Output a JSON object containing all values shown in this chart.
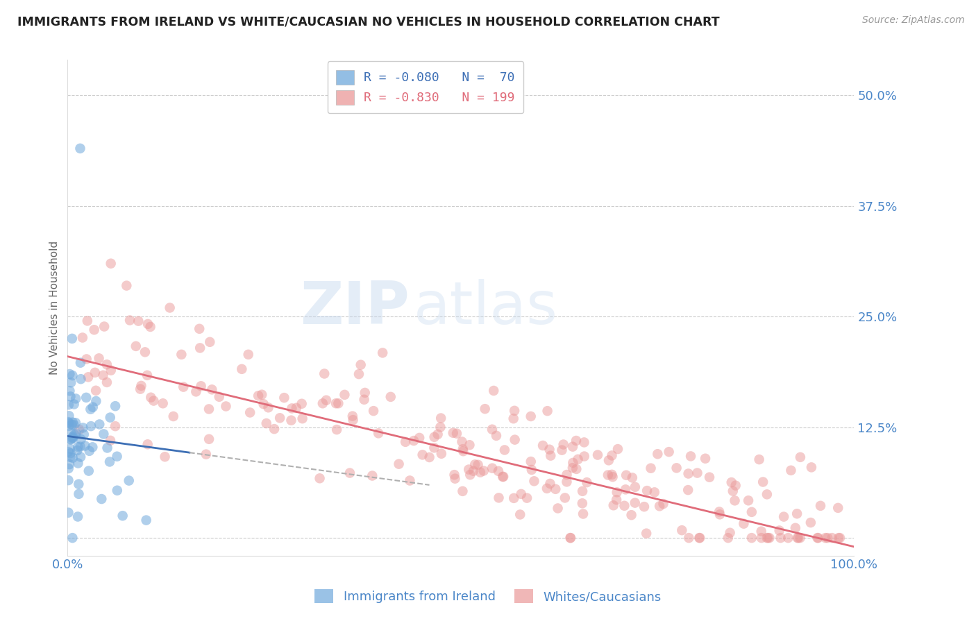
{
  "title": "IMMIGRANTS FROM IRELAND VS WHITE/CAUCASIAN NO VEHICLES IN HOUSEHOLD CORRELATION CHART",
  "source": "Source: ZipAtlas.com",
  "ylabel": "No Vehicles in Household",
  "xlim": [
    0.0,
    1.0
  ],
  "ylim": [
    -0.02,
    0.54
  ],
  "yticks": [
    0.0,
    0.125,
    0.25,
    0.375,
    0.5
  ],
  "ytick_labels": [
    "",
    "12.5%",
    "25.0%",
    "37.5%",
    "50.0%"
  ],
  "xticks": [
    0.0,
    1.0
  ],
  "xtick_labels": [
    "0.0%",
    "100.0%"
  ],
  "legend_labels": [
    "Immigrants from Ireland",
    "Whites/Caucasians"
  ],
  "blue_color": "#6fa8dc",
  "pink_color": "#ea9999",
  "blue_line_color": "#3d6fb5",
  "pink_line_color": "#e06c7a",
  "dashed_line_color": "#b0b0b0",
  "axis_label_color": "#4a86c8",
  "grid_color": "#cccccc",
  "watermark_zip": "ZIP",
  "watermark_atlas": "atlas",
  "R_blue": -0.08,
  "N_blue": 70,
  "R_pink": -0.83,
  "N_pink": 199,
  "blue_intercept": 0.115,
  "blue_slope": -0.12,
  "pink_intercept": 0.205,
  "pink_slope": -0.215,
  "seed": 42
}
